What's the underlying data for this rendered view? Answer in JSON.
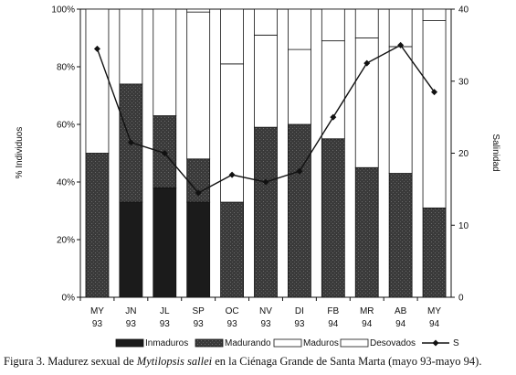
{
  "chart_data": {
    "type": "bar",
    "stacked": true,
    "categories": [
      "MY 93",
      "JN 93",
      "JL 93",
      "SP 93",
      "OC 93",
      "NV 93",
      "DI 93",
      "FB 94",
      "MR 94",
      "AB 94",
      "MY 94"
    ],
    "category_lines": [
      [
        "MY",
        "93"
      ],
      [
        "JN",
        "93"
      ],
      [
        "JL",
        "93"
      ],
      [
        "SP",
        "93"
      ],
      [
        "OC",
        "93"
      ],
      [
        "NV",
        "93"
      ],
      [
        "DI",
        "93"
      ],
      [
        "FB",
        "94"
      ],
      [
        "MR",
        "94"
      ],
      [
        "AB",
        "94"
      ],
      [
        "MY",
        "94"
      ]
    ],
    "series": [
      {
        "name": "Inmaduros",
        "axis": "left",
        "color": "#1b1b1b",
        "values": [
          0,
          33,
          38,
          33,
          0,
          0,
          0,
          0,
          0,
          0,
          0
        ]
      },
      {
        "name": "Madurando",
        "axis": "left",
        "color": "#3d3d3d",
        "values": [
          50,
          41,
          25,
          15,
          33,
          59,
          60,
          55,
          45,
          43,
          31
        ]
      },
      {
        "name": "Maduros",
        "axis": "left",
        "color": "#ffffff",
        "values": [
          50,
          26,
          37,
          51,
          48,
          32,
          26,
          34,
          45,
          44,
          65
        ]
      },
      {
        "name": "Desovados",
        "axis": "left",
        "color": "#ffffff",
        "values": [
          0,
          0,
          0,
          1,
          19,
          9,
          14,
          11,
          10,
          13,
          4
        ]
      },
      {
        "name": "S",
        "type": "line",
        "axis": "right",
        "color": "#111111",
        "values": [
          34.5,
          21.5,
          20,
          14.5,
          17,
          16,
          17.5,
          25,
          32.5,
          35,
          28.5
        ]
      }
    ],
    "ylabel": "% Individuos",
    "y2label": "Salinidad",
    "ylim": [
      0,
      100
    ],
    "y2lim": [
      0,
      40
    ],
    "yticks": [
      "0%",
      "20%",
      "40%",
      "60%",
      "80%",
      "100%"
    ],
    "yticks_values": [
      0,
      20,
      40,
      60,
      80,
      100
    ],
    "y2ticks": [
      0,
      10,
      20,
      30,
      40
    ],
    "legend_position": "bottom",
    "grid": false
  },
  "caption": {
    "before": "Figura 3. Madurez sexual de ",
    "species": "Mytilopsis sallei",
    "after": " en la Ciénaga Grande de Santa Marta (mayo 93-mayo 94)."
  }
}
